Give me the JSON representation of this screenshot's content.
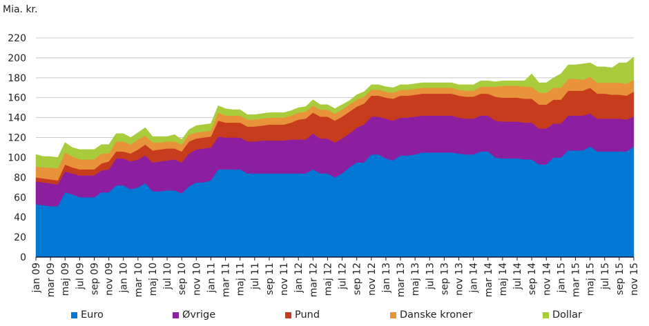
{
  "chart_data": {
    "type": "area",
    "stacked": true,
    "title": "",
    "ylabel": "Mia. kr.",
    "xlabel": "",
    "ylim": [
      0,
      220
    ],
    "yticks": [
      0,
      20,
      40,
      60,
      80,
      100,
      120,
      140,
      160,
      180,
      200,
      220
    ],
    "grid": true,
    "legend_position": "bottom",
    "x": [
      "jan 09",
      "feb 09",
      "mar 09",
      "apr 09",
      "maj 09",
      "jun 09",
      "jul 09",
      "aug 09",
      "sep 09",
      "okt 09",
      "nov 09",
      "dec 09",
      "jan 10",
      "feb 10",
      "mar 10",
      "apr 10",
      "maj 10",
      "jun 10",
      "jul 10",
      "aug 10",
      "sep 10",
      "okt 10",
      "nov 10",
      "dec 10",
      "jan 11",
      "feb 11",
      "mar 11",
      "apr 11",
      "maj 11",
      "jun 11",
      "jul 11",
      "aug 11",
      "sep 11",
      "okt 11",
      "nov 11",
      "dec 11",
      "jan 12",
      "feb 12",
      "mar 12",
      "apr 12",
      "maj 12",
      "jun 12",
      "jul 12",
      "aug 12",
      "sep 12",
      "okt 12",
      "nov 12",
      "dec 12",
      "jan 13",
      "feb 13",
      "mar 13",
      "apr 13",
      "maj 13",
      "jun 13",
      "jul 13",
      "aug 13",
      "sep 13",
      "okt 13",
      "nov 13",
      "dec 13",
      "jan 14",
      "feb 14",
      "mar 14",
      "apr 14",
      "maj 14",
      "jun 14",
      "jul 14",
      "aug 14",
      "sep 14",
      "okt 14",
      "nov 14",
      "dec 14",
      "jan 15",
      "feb 15",
      "mar 15",
      "apr 15",
      "maj 15",
      "jun 15",
      "jul 15",
      "aug 15",
      "sep 15",
      "okt 15",
      "nov 15"
    ],
    "xtick_labels": [
      "jan 09",
      "mar 09",
      "maj 09",
      "jul 09",
      "sep 09",
      "nov 09",
      "jan 10",
      "mar 10",
      "maj 10",
      "jul 10",
      "sep 10",
      "nov 10",
      "jan 11",
      "mar 11",
      "maj 11",
      "jul 11",
      "sep 11",
      "nov 11",
      "jan 12",
      "mar 12",
      "maj 12",
      "jul 12",
      "sep 12",
      "nov 12",
      "jan 13",
      "mar 13",
      "maj 13",
      "jul 13",
      "sep 13",
      "nov 13",
      "jan 14",
      "mar 14",
      "maj 14",
      "jul 14",
      "sep 14",
      "nov 14",
      "jan 15",
      "mar 15",
      "maj 15",
      "jul 15",
      "sep 15",
      "nov 15"
    ],
    "series": [
      {
        "name": "Euro",
        "color": "#0078D4",
        "values": [
          53,
          52,
          51,
          51,
          65,
          63,
          60,
          60,
          60,
          65,
          65,
          72,
          72,
          68,
          70,
          74,
          66,
          66,
          67,
          67,
          64,
          71,
          75,
          75,
          77,
          88,
          88,
          88,
          88,
          84,
          84,
          84,
          84,
          84,
          84,
          84,
          84,
          84,
          88,
          84,
          84,
          80,
          84,
          90,
          95,
          95,
          103,
          103,
          99,
          97,
          102,
          102,
          103,
          105,
          105,
          105,
          105,
          105,
          104,
          103,
          103,
          106,
          106,
          100,
          99,
          99,
          99,
          98,
          98,
          93,
          93,
          100,
          100,
          107,
          107,
          107,
          111,
          106,
          106,
          106,
          106,
          106,
          111
        ]
      },
      {
        "name": "Øvrige",
        "color": "#8B1FA0",
        "values": [
          23,
          23,
          23,
          22,
          21,
          21,
          22,
          22,
          22,
          22,
          23,
          27,
          27,
          28,
          28,
          28,
          29,
          30,
          30,
          31,
          31,
          33,
          33,
          34,
          33,
          33,
          32,
          32,
          32,
          32,
          32,
          33,
          33,
          33,
          33,
          34,
          34,
          34,
          36,
          35,
          35,
          35,
          35,
          34,
          35,
          38,
          38,
          38,
          40,
          40,
          38,
          38,
          38,
          37,
          37,
          37,
          37,
          37,
          36,
          36,
          36,
          36,
          36,
          37,
          37,
          37,
          37,
          37,
          37,
          36,
          36,
          34,
          34,
          35,
          35,
          35,
          33,
          33,
          33,
          33,
          33,
          32,
          30
        ]
      },
      {
        "name": "Pund",
        "color": "#C83C1E",
        "values": [
          4,
          4,
          4,
          4,
          7,
          6,
          6,
          6,
          6,
          7,
          8,
          7,
          7,
          8,
          10,
          11,
          12,
          12,
          12,
          11,
          11,
          12,
          11,
          11,
          11,
          16,
          15,
          15,
          15,
          15,
          15,
          15,
          16,
          16,
          16,
          17,
          20,
          21,
          21,
          22,
          22,
          22,
          22,
          22,
          21,
          21,
          21,
          21,
          21,
          22,
          22,
          22,
          22,
          22,
          22,
          22,
          22,
          22,
          22,
          22,
          22,
          22,
          22,
          24,
          24,
          24,
          24,
          24,
          24,
          24,
          24,
          24,
          24,
          25,
          25,
          25,
          26,
          25,
          25,
          24,
          24,
          24,
          25
        ]
      },
      {
        "name": "Danske kroner",
        "color": "#E8923A",
        "values": [
          11,
          11,
          12,
          12,
          12,
          11,
          10,
          10,
          10,
          10,
          8,
          10,
          10,
          9,
          10,
          9,
          8,
          7,
          7,
          7,
          7,
          7,
          6,
          6,
          6,
          8,
          7,
          7,
          7,
          7,
          7,
          7,
          7,
          7,
          7,
          7,
          7,
          7,
          7,
          7,
          7,
          7,
          7,
          7,
          7,
          7,
          6,
          6,
          6,
          6,
          6,
          6,
          6,
          6,
          6,
          6,
          6,
          6,
          6,
          6,
          6,
          7,
          7,
          10,
          12,
          12,
          12,
          12,
          12,
          12,
          12,
          12,
          12,
          12,
          12,
          11,
          11,
          11,
          11,
          12,
          12,
          12,
          12
        ]
      },
      {
        "name": "Dollar",
        "color": "#A8CC3C",
        "values": [
          12,
          11,
          11,
          11,
          10,
          9,
          10,
          10,
          10,
          9,
          9,
          8,
          8,
          7,
          7,
          8,
          6,
          6,
          5,
          7,
          5,
          5,
          7,
          7,
          7,
          7,
          7,
          6,
          6,
          5,
          5,
          5,
          5,
          5,
          5,
          5,
          5,
          5,
          6,
          5,
          5,
          5,
          5,
          4,
          5,
          5,
          5,
          5,
          5,
          5,
          5,
          5,
          5,
          5,
          5,
          5,
          5,
          5,
          5,
          6,
          6,
          6,
          6,
          5,
          5,
          5,
          5,
          6,
          13,
          10,
          10,
          10,
          14,
          14,
          14,
          16,
          14,
          16,
          16,
          15,
          20,
          21,
          23
        ]
      }
    ]
  }
}
